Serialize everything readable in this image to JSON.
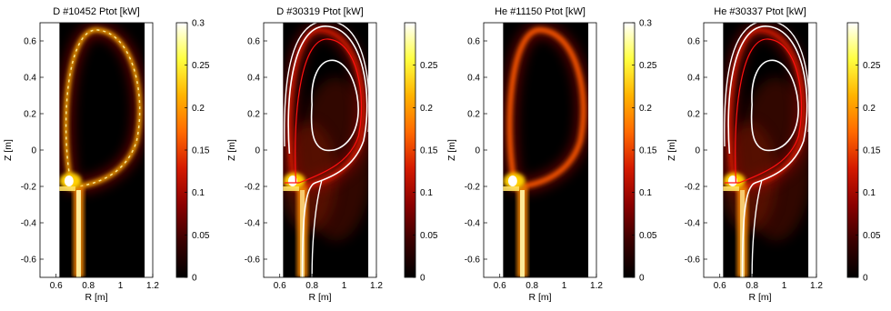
{
  "figure": {
    "background": "#ffffff",
    "colormap": [
      "#000000",
      "#3a0000",
      "#8c0000",
      "#d41a00",
      "#ff6a00",
      "#ffb300",
      "#ffff40",
      "#ffffff"
    ]
  },
  "chart_data": [
    {
      "type": "heatmap",
      "title": "D #10452 Ptot [kW]",
      "xlabel": "R [m]",
      "ylabel": "Z [m]",
      "xlim": [
        0.5,
        1.2
      ],
      "ylim": [
        -0.7,
        0.7
      ],
      "data_extent_R": [
        0.62,
        1.15
      ],
      "xticks": [
        "0.6",
        "0.8",
        "1",
        "1.2"
      ],
      "yticks": [
        "0.6",
        "0.4",
        "0.2",
        "0",
        "-0.2",
        "-0.4",
        "-0.6"
      ],
      "colorbar": {
        "min": 0,
        "max": 0.3,
        "ticks": [
          "0.3",
          "0.25",
          "0.2",
          "0.15",
          "0.1",
          "0.05",
          "0"
        ]
      },
      "overlay_contours": false,
      "peak_value_kW": 0.3
    },
    {
      "type": "heatmap",
      "title": "D #30319 Ptot [kW]",
      "xlabel": "R [m]",
      "ylabel": "Z [m]",
      "xlim": [
        0.5,
        1.2
      ],
      "ylim": [
        -0.7,
        0.7
      ],
      "data_extent_R": [
        0.62,
        1.15
      ],
      "xticks": [
        "0.6",
        "0.8",
        "1",
        "1.2"
      ],
      "yticks": [
        "0.6",
        "0.4",
        "0.2",
        "0",
        "-0.2",
        "-0.4",
        "-0.6"
      ],
      "colorbar": {
        "min": 0,
        "max": 0.3,
        "ticks": [
          "0.25",
          "0.2",
          "0.15",
          "0.1",
          "0.05",
          "0"
        ]
      },
      "overlay_contours": true,
      "contour_colors": [
        "#ffffff",
        "#ff1010"
      ]
    },
    {
      "type": "heatmap",
      "title": "He #11150 Ptot [kW]",
      "xlabel": "R [m]",
      "ylabel": "Z [m]",
      "xlim": [
        0.5,
        1.2
      ],
      "ylim": [
        -0.7,
        0.7
      ],
      "data_extent_R": [
        0.62,
        1.15
      ],
      "xticks": [
        "0.6",
        "0.8",
        "1",
        "1.2"
      ],
      "yticks": [
        "0.6",
        "0.4",
        "0.2",
        "0",
        "-0.2",
        "-0.4",
        "-0.6"
      ],
      "colorbar": {
        "min": 0,
        "max": 0.3,
        "ticks": [
          "0.3",
          "0.25",
          "0.2",
          "0.15",
          "0.1",
          "0.05",
          "0"
        ]
      },
      "overlay_contours": false
    },
    {
      "type": "heatmap",
      "title": "He #30337 Ptot [kW]",
      "xlabel": "R [m]",
      "ylabel": "Z [m]",
      "xlim": [
        0.5,
        1.2
      ],
      "ylim": [
        -0.7,
        0.7
      ],
      "data_extent_R": [
        0.62,
        1.15
      ],
      "xticks": [
        "0.6",
        "0.8",
        "1",
        "1.2"
      ],
      "yticks": [
        "0.6",
        "0.4",
        "0.2",
        "0",
        "-0.2",
        "-0.4",
        "-0.6"
      ],
      "colorbar": {
        "min": 0,
        "max": 0.3,
        "ticks": [
          "0.25",
          "0.2",
          "0.15",
          "0.1",
          "0.05",
          "0"
        ]
      },
      "overlay_contours": true,
      "contour_colors": [
        "#ffffff",
        "#ff1010"
      ]
    }
  ]
}
